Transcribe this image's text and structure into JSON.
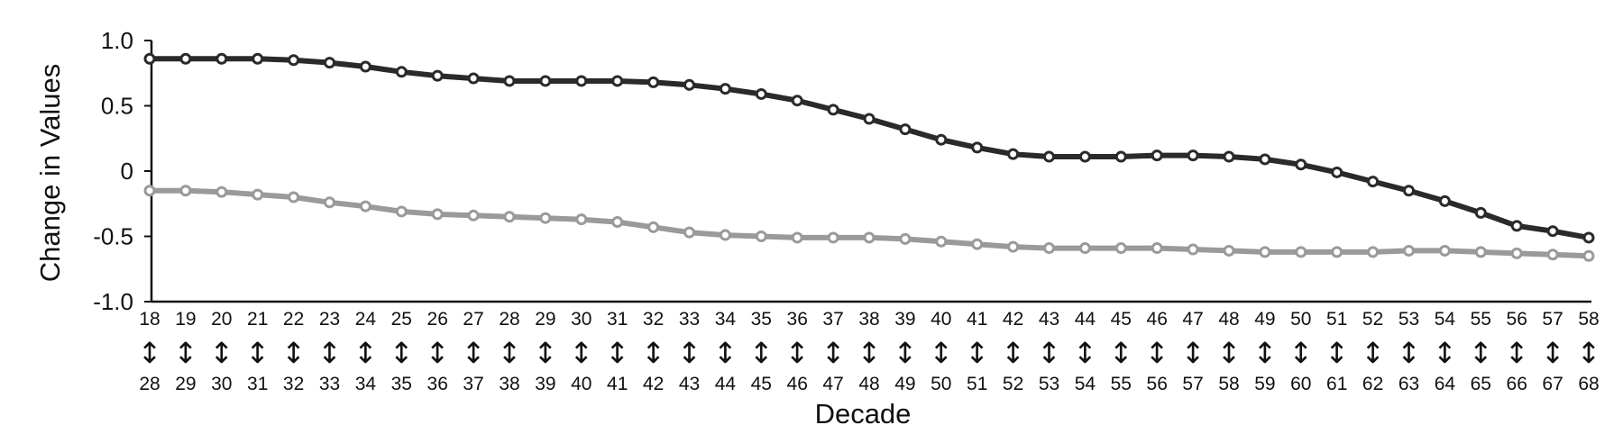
{
  "chart_data": {
    "type": "line",
    "title": "",
    "xlabel": "Decade",
    "ylabel": "Change in Values",
    "ylim": [
      -1.0,
      1.0
    ],
    "yticks": [
      1.0,
      0.5,
      0,
      -0.5,
      -1.0
    ],
    "ytick_labels": [
      "1.0",
      "0.5",
      "0",
      "-0.5",
      "-1.0"
    ],
    "arrow_glyph": "↕",
    "categories": [
      {
        "start": "18",
        "end": "28"
      },
      {
        "start": "19",
        "end": "29"
      },
      {
        "start": "20",
        "end": "30"
      },
      {
        "start": "21",
        "end": "31"
      },
      {
        "start": "22",
        "end": "32"
      },
      {
        "start": "23",
        "end": "33"
      },
      {
        "start": "24",
        "end": "34"
      },
      {
        "start": "25",
        "end": "35"
      },
      {
        "start": "26",
        "end": "36"
      },
      {
        "start": "27",
        "end": "37"
      },
      {
        "start": "28",
        "end": "38"
      },
      {
        "start": "29",
        "end": "39"
      },
      {
        "start": "30",
        "end": "40"
      },
      {
        "start": "31",
        "end": "41"
      },
      {
        "start": "32",
        "end": "42"
      },
      {
        "start": "33",
        "end": "43"
      },
      {
        "start": "34",
        "end": "44"
      },
      {
        "start": "35",
        "end": "45"
      },
      {
        "start": "36",
        "end": "46"
      },
      {
        "start": "37",
        "end": "47"
      },
      {
        "start": "38",
        "end": "48"
      },
      {
        "start": "39",
        "end": "49"
      },
      {
        "start": "40",
        "end": "50"
      },
      {
        "start": "41",
        "end": "51"
      },
      {
        "start": "42",
        "end": "52"
      },
      {
        "start": "43",
        "end": "53"
      },
      {
        "start": "44",
        "end": "54"
      },
      {
        "start": "45",
        "end": "55"
      },
      {
        "start": "46",
        "end": "56"
      },
      {
        "start": "47",
        "end": "57"
      },
      {
        "start": "48",
        "end": "58"
      },
      {
        "start": "49",
        "end": "59"
      },
      {
        "start": "50",
        "end": "60"
      },
      {
        "start": "51",
        "end": "61"
      },
      {
        "start": "52",
        "end": "62"
      },
      {
        "start": "53",
        "end": "63"
      },
      {
        "start": "54",
        "end": "64"
      },
      {
        "start": "55",
        "end": "65"
      },
      {
        "start": "56",
        "end": "66"
      },
      {
        "start": "57",
        "end": "67"
      },
      {
        "start": "58",
        "end": "68"
      }
    ],
    "series": [
      {
        "color": "#2a2a2a",
        "values": [
          0.86,
          0.86,
          0.86,
          0.86,
          0.85,
          0.83,
          0.8,
          0.76,
          0.73,
          0.71,
          0.69,
          0.69,
          0.69,
          0.69,
          0.68,
          0.66,
          0.63,
          0.59,
          0.54,
          0.47,
          0.4,
          0.32,
          0.24,
          0.18,
          0.13,
          0.11,
          0.11,
          0.11,
          0.12,
          0.12,
          0.11,
          0.09,
          0.05,
          -0.01,
          -0.08,
          -0.15,
          -0.23,
          -0.32,
          -0.42,
          -0.46,
          -0.51
        ]
      },
      {
        "color": "#9a9a9a",
        "values": [
          -0.15,
          -0.15,
          -0.16,
          -0.18,
          -0.2,
          -0.24,
          -0.27,
          -0.31,
          -0.33,
          -0.34,
          -0.35,
          -0.36,
          -0.37,
          -0.39,
          -0.43,
          -0.47,
          -0.49,
          -0.5,
          -0.51,
          -0.51,
          -0.51,
          -0.52,
          -0.54,
          -0.56,
          -0.58,
          -0.59,
          -0.59,
          -0.59,
          -0.59,
          -0.6,
          -0.61,
          -0.62,
          -0.62,
          -0.62,
          -0.62,
          -0.61,
          -0.61,
          -0.62,
          -0.63,
          -0.64,
          -0.65
        ]
      }
    ],
    "grid": false,
    "legend": "none"
  }
}
